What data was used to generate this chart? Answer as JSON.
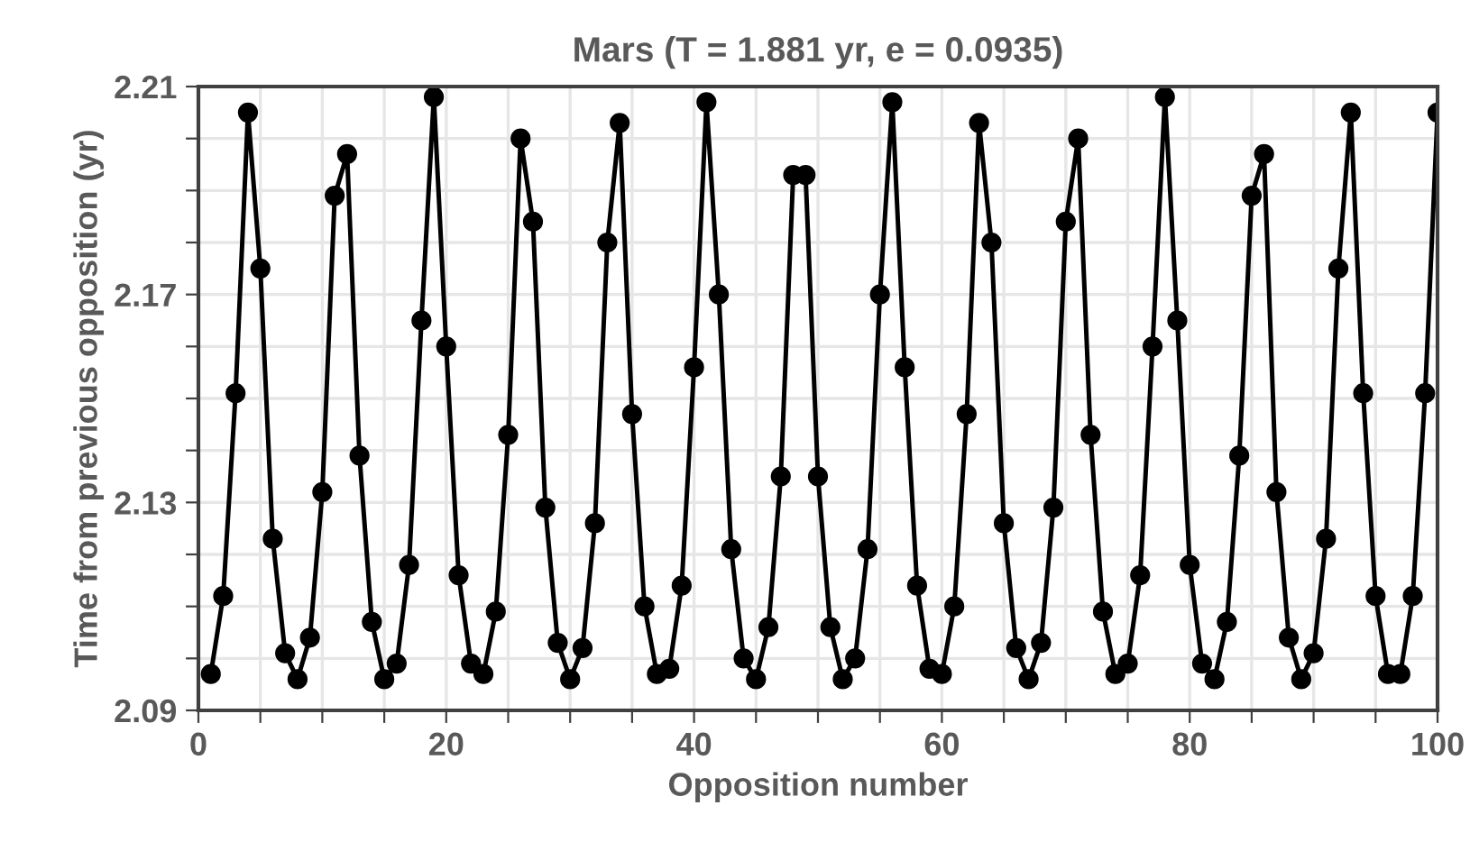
{
  "chart_data": {
    "type": "line",
    "title": "Mars (T = 1.881 yr, e = 0.0935)",
    "xlabel": "Opposition number",
    "ylabel": "Time from previous opposition (yr)",
    "x": [
      1,
      2,
      3,
      4,
      5,
      6,
      7,
      8,
      9,
      10,
      11,
      12,
      13,
      14,
      15,
      16,
      17,
      18,
      19,
      20,
      21,
      22,
      23,
      24,
      25,
      26,
      27,
      28,
      29,
      30,
      31,
      32,
      33,
      34,
      35,
      36,
      37,
      38,
      39,
      40,
      41,
      42,
      43,
      44,
      45,
      46,
      47,
      48,
      49,
      50,
      51,
      52,
      53,
      54,
      55,
      56,
      57,
      58,
      59,
      60,
      61,
      62,
      63,
      64,
      65,
      66,
      67,
      68,
      69,
      70,
      71,
      72,
      73,
      74,
      75,
      76,
      77,
      78,
      79,
      80,
      81,
      82,
      83,
      84,
      85,
      86,
      87,
      88,
      89,
      90,
      91,
      92,
      93,
      94,
      95,
      96,
      97,
      98,
      99,
      100
    ],
    "series": [
      {
        "color": "#000000",
        "values": [
          2.097,
          2.112,
          2.151,
          2.205,
          2.175,
          2.123,
          2.101,
          2.096,
          2.104,
          2.132,
          2.189,
          2.197,
          2.139,
          2.107,
          2.096,
          2.099,
          2.118,
          2.165,
          2.208,
          2.16,
          2.116,
          2.099,
          2.097,
          2.109,
          2.143,
          2.2,
          2.184,
          2.129,
          2.103,
          2.096,
          2.102,
          2.126,
          2.18,
          2.203,
          2.147,
          2.11,
          2.097,
          2.098,
          2.114,
          2.156,
          2.207,
          2.17,
          2.121,
          2.1,
          2.096,
          2.106,
          2.135,
          2.193,
          2.193,
          2.135,
          2.106,
          2.096,
          2.1,
          2.121,
          2.17,
          2.207,
          2.156,
          2.114,
          2.098,
          2.097,
          2.11,
          2.147,
          2.203,
          2.18,
          2.126,
          2.102,
          2.096,
          2.103,
          2.129,
          2.184,
          2.2,
          2.143,
          2.109,
          2.097,
          2.099,
          2.116,
          2.16,
          2.208,
          2.165,
          2.118,
          2.099,
          2.096,
          2.107,
          2.139,
          2.189,
          2.197,
          2.132,
          2.104,
          2.096,
          2.101,
          2.123,
          2.175,
          2.205,
          2.151,
          2.112,
          2.097,
          2.097,
          2.112,
          2.151,
          2.205
        ]
      }
    ],
    "xlim": [
      0,
      100
    ],
    "ylim": [
      2.09,
      2.21
    ],
    "xticks": [
      0,
      {
        "value": 5,
        "label": null
      },
      20,
      {
        "value": 10,
        "label": null
      },
      {
        "value": 15,
        "label": null
      },
      {
        "value": 25,
        "label": null
      },
      {
        "value": 30,
        "label": null
      },
      {
        "value": 35,
        "label": null
      },
      40,
      {
        "value": 45,
        "label": null
      },
      {
        "value": 50,
        "label": null
      },
      {
        "value": 55,
        "label": null
      },
      60,
      {
        "value": 65,
        "label": null
      },
      {
        "value": 70,
        "label": null
      },
      {
        "value": 75,
        "label": null
      },
      80,
      {
        "value": 85,
        "label": null
      },
      {
        "value": 90,
        "label": null
      },
      {
        "value": 95,
        "label": null
      },
      100
    ],
    "yticks": [
      2.09,
      {
        "value": 2.1,
        "label": null
      },
      {
        "value": 2.11,
        "label": null
      },
      {
        "value": 2.12,
        "label": null
      },
      2.13,
      {
        "value": 2.14,
        "label": null
      },
      {
        "value": 2.15,
        "label": null
      },
      {
        "value": 2.16,
        "label": null
      },
      2.17,
      {
        "value": 2.18,
        "label": null
      },
      {
        "value": 2.19,
        "label": null
      },
      {
        "value": 2.2,
        "label": null
      },
      2.21
    ],
    "grid": true,
    "legend": false,
    "marker": "circle",
    "line_style": "solid"
  }
}
